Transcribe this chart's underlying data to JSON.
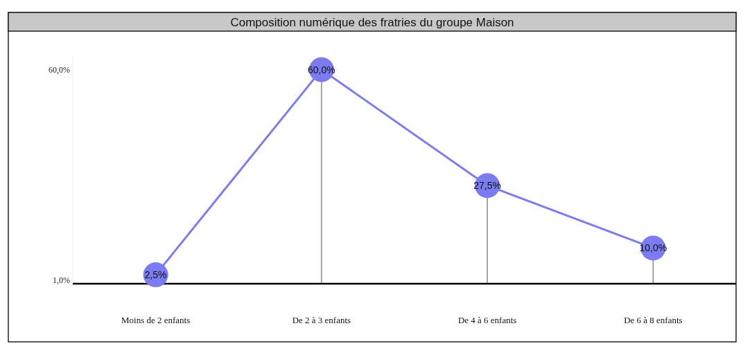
{
  "chart_data": {
    "type": "line",
    "title": "Composition numérique des fratries du groupe Maison",
    "categories": [
      "Moins de 2 enfants",
      "De 2 à 3 enfants",
      "De 4 à 6 enfants",
      "De 6 à 8 enfants"
    ],
    "series": [
      {
        "color": "#7b7bf2",
        "values": [
          2.5,
          60,
          27.5,
          10
        ],
        "value_labels": [
          "2,5%",
          "60,0%",
          "27,5%",
          "10,0%"
        ]
      }
    ],
    "ylim": [
      0,
      64
    ],
    "yticks": [
      {
        "value": 1,
        "label": "1,0%"
      },
      {
        "value": 60,
        "label": "60,0%"
      }
    ],
    "marker": "circle",
    "line_style": "solid"
  }
}
